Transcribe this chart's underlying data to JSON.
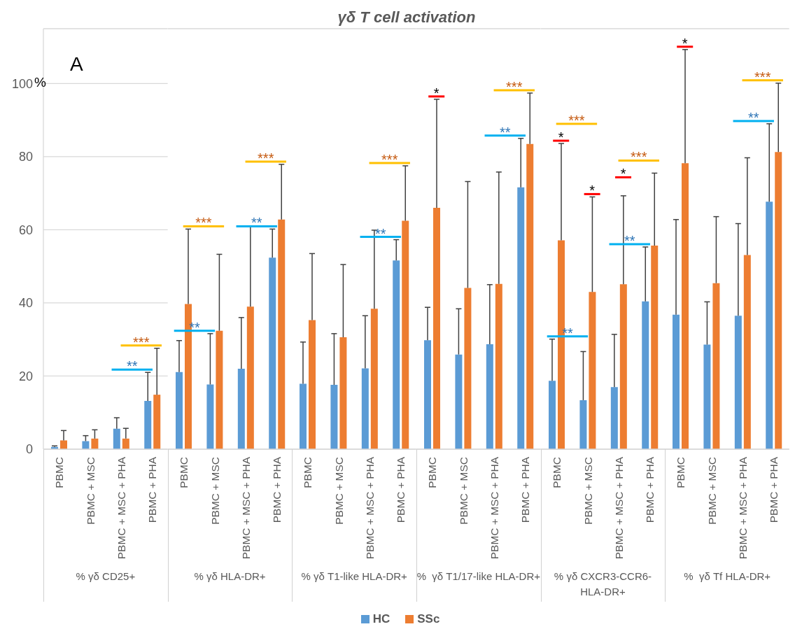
{
  "chart_data": [
    {
      "type": "bar",
      "ylabel": "%",
      "xlabel": "% γδ CD25+",
      "categories": [
        "PBMC",
        "PBMC + MSC",
        "PBMC + MSC + PHA",
        "PBMC + PHA"
      ],
      "series": [
        {
          "color": "#5b9bd5",
          "values": [
            0.6,
            2.2,
            5.6,
            13.2
          ],
          "errors": [
            [
              0.6,
              0.9
            ],
            [
              2.2,
              3.7
            ],
            [
              5.6,
              8.6
            ],
            [
              13.2,
              21.0
            ]
          ]
        },
        {
          "color": "#ed7d31",
          "values": [
            2.4,
            2.9,
            2.9,
            14.9
          ],
          "errors": [
            [
              2.4,
              5.1
            ],
            [
              2.9,
              5.3
            ],
            [
              2.9,
              5.7
            ],
            [
              14.9,
              27.6
            ]
          ]
        }
      ],
      "annotations": [
        "A",
        "**",
        "***"
      ],
      "ylim": [
        0,
        115
      ],
      "yticks": [
        0,
        20,
        40,
        60,
        80,
        100
      ],
      "grid": "y"
    },
    {
      "type": "bar",
      "xlabel": "% γδ HLA-DR+",
      "categories": [
        "PBMC",
        "PBMC + MSC",
        "PBMC + MSC + PHA",
        "PBMC + PHA"
      ],
      "series": [
        {
          "color": "#5b9bd5",
          "values": [
            21.1,
            17.7,
            22.0,
            52.4
          ],
          "errors": [
            [
              21.1,
              29.7
            ],
            [
              17.7,
              31.6
            ],
            [
              22.0,
              36.0
            ],
            [
              52.4,
              60.2
            ]
          ]
        },
        {
          "color": "#ed7d31",
          "values": [
            39.7,
            32.4,
            39.0,
            62.8
          ],
          "errors": [
            [
              39.7,
              60.2
            ],
            [
              32.4,
              53.3
            ],
            [
              39.0,
              60.9
            ],
            [
              62.8,
              77.9
            ]
          ]
        }
      ],
      "annotations": [
        "**",
        "***",
        "**",
        "***"
      ],
      "ylim": [
        0,
        115
      ],
      "yticks": [
        0,
        20,
        40,
        60,
        80,
        100
      ],
      "grid": "y",
      "tick_labels": "x"
    },
    {
      "type": "bar",
      "title": "γδ T cell activation",
      "xlabel": "% γδ T1-like HLA-DR+",
      "categories": [
        "PBMC",
        "PBMC + MSC",
        "PBMC + MSC + PHA",
        "PBMC + PHA"
      ],
      "series": [
        {
          "name": "HC",
          "color": "#5b9bd5",
          "values": [
            17.9,
            17.6,
            22.1,
            51.6
          ],
          "errors": [
            [
              17.9,
              29.3
            ],
            [
              17.6,
              31.6
            ],
            [
              22.1,
              36.5
            ],
            [
              51.6,
              57.3
            ]
          ]
        },
        {
          "name": "SSc",
          "color": "#ed7d31",
          "values": [
            35.3,
            30.6,
            38.4,
            62.5
          ],
          "errors": [
            [
              35.3,
              53.5
            ],
            [
              30.6,
              50.5
            ],
            [
              38.4,
              59.9
            ],
            [
              62.5,
              77.5
            ]
          ]
        }
      ],
      "annotations": [
        "**",
        "***"
      ],
      "ylim": [
        0,
        115
      ],
      "yticks": [
        0,
        20,
        40,
        60,
        80,
        100
      ],
      "grid": "y",
      "tick_labels": "x",
      "legend": "bottom"
    },
    {
      "type": "bar",
      "xlabel": "%  γδ T1/17-like HLA-DR+",
      "categories": [
        "PBMC",
        "PBMC + MSC",
        "PBMC + MSC + PHA",
        "PBMC + PHA"
      ],
      "series": [
        {
          "color": "#5b9bd5",
          "values": [
            29.8,
            25.9,
            28.7,
            71.6
          ],
          "errors": [
            [
              29.8,
              38.8
            ],
            [
              25.9,
              38.4
            ],
            [
              28.7,
              45.0
            ],
            [
              71.6,
              85.0
            ]
          ]
        },
        {
          "color": "#ed7d31",
          "values": [
            66.0,
            44.1,
            45.2,
            83.5
          ],
          "errors": [
            [
              66.0,
              95.7
            ],
            [
              44.1,
              73.2
            ],
            [
              45.2,
              75.8
            ],
            [
              83.5,
              97.4
            ]
          ]
        }
      ],
      "annotations": [
        "*",
        "**",
        "***"
      ],
      "ylim": [
        0,
        115
      ],
      "yticks": [
        0,
        20,
        40,
        60,
        80,
        100
      ],
      "grid": "y",
      "tick_labels": "x"
    },
    {
      "type": "bar",
      "xlabel": "% γδ CXCR3-CCR6- HLA-DR+",
      "categories": [
        "PBMC",
        "PBMC + MSC",
        "PBMC + MSC + PHA",
        "PBMC + PHA"
      ],
      "series": [
        {
          "color": "#5b9bd5",
          "values": [
            18.7,
            13.4,
            17.0,
            40.4
          ],
          "errors": [
            [
              18.7,
              30.1
            ],
            [
              13.4,
              26.7
            ],
            [
              17.0,
              31.4
            ],
            [
              40.4,
              55.3
            ]
          ]
        },
        {
          "color": "#ed7d31",
          "values": [
            57.1,
            43.0,
            45.1,
            55.7
          ],
          "errors": [
            [
              57.1,
              83.6
            ],
            [
              43.0,
              69.0
            ],
            [
              45.1,
              69.3
            ],
            [
              55.7,
              75.5
            ]
          ]
        }
      ],
      "annotations": [
        "*",
        "**",
        "***",
        "*",
        "*",
        "**",
        "***"
      ],
      "ylim": [
        0,
        115
      ],
      "yticks": [
        0,
        20,
        40,
        60,
        80,
        100
      ],
      "grid": "y",
      "tick_labels": "x"
    },
    {
      "type": "bar",
      "xlabel": "%  γδ Tf HLA-DR+",
      "categories": [
        "PBMC",
        "PBMC + MSC",
        "PBMC + MSC + PHA",
        "PBMC + PHA"
      ],
      "series": [
        {
          "color": "#5b9bd5",
          "values": [
            36.8,
            28.6,
            36.5,
            67.7
          ],
          "errors": [
            [
              36.8,
              62.8
            ],
            [
              28.6,
              40.3
            ],
            [
              36.5,
              61.7
            ],
            [
              67.7,
              89.0
            ]
          ]
        },
        {
          "color": "#ed7d31",
          "values": [
            78.2,
            45.4,
            53.1,
            81.3
          ],
          "errors": [
            [
              78.2,
              109.3
            ],
            [
              45.4,
              63.6
            ],
            [
              53.1,
              79.7
            ],
            [
              81.3,
              100.1
            ]
          ]
        }
      ],
      "annotations": [
        "*",
        "**",
        "***"
      ],
      "ylim": [
        0,
        115
      ],
      "yticks": [
        0,
        20,
        40,
        60,
        80,
        100
      ],
      "grid": "y",
      "tick_labels": "x"
    }
  ]
}
